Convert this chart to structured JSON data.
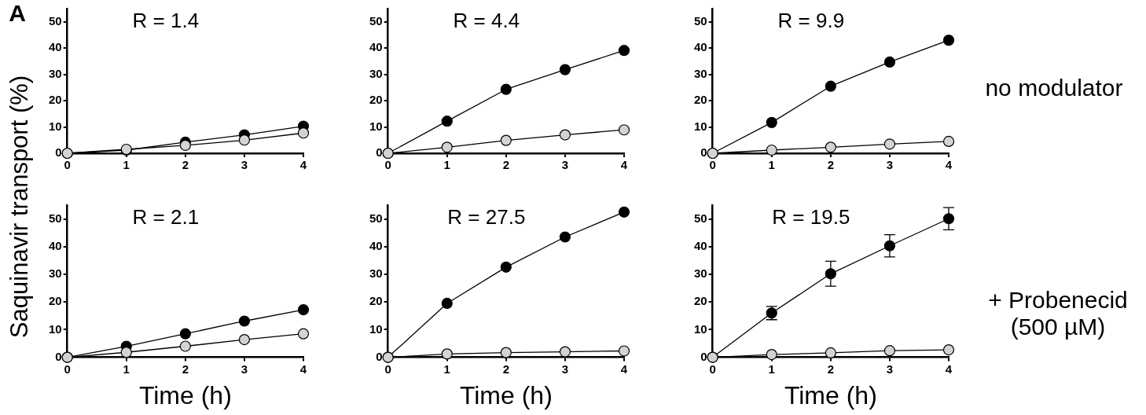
{
  "chart_data": [
    {
      "type": "line",
      "title": "R = 1.4",
      "ylabel": "Saquinavir transport (%)",
      "annotations": [
        "A"
      ],
      "x": [
        0,
        1,
        2,
        3,
        4
      ],
      "xlim": [
        0,
        4
      ],
      "xticks": [
        0,
        1,
        2,
        3,
        4
      ],
      "ylim": [
        0,
        55
      ],
      "yticks": [
        0,
        10,
        20,
        30,
        40,
        50
      ],
      "grid": false,
      "legend": false,
      "marker": "circle",
      "line_style": "solid",
      "series": [
        {
          "color": "#000000",
          "values": [
            0,
            1.2,
            4.2,
            7.0,
            10.3
          ]
        },
        {
          "color": "#d3d3d3",
          "values": [
            0,
            1.5,
            3.0,
            5.0,
            7.7
          ]
        }
      ]
    },
    {
      "type": "line",
      "title": "R = 4.4",
      "x": [
        0,
        1,
        2,
        3,
        4
      ],
      "xlim": [
        0,
        4
      ],
      "xticks": [
        0,
        1,
        2,
        3,
        4
      ],
      "ylim": [
        0,
        55
      ],
      "yticks": [
        0,
        10,
        20,
        30,
        40,
        50
      ],
      "grid": false,
      "legend": false,
      "marker": "circle",
      "line_style": "solid",
      "series": [
        {
          "color": "#000000",
          "values": [
            0,
            12.2,
            24.3,
            31.8,
            39.1
          ]
        },
        {
          "color": "#d3d3d3",
          "values": [
            0,
            2.3,
            4.9,
            7.0,
            8.9
          ]
        }
      ]
    },
    {
      "type": "line",
      "title": "R = 9.9",
      "annotations": [
        "no modulator"
      ],
      "x": [
        0,
        1,
        2,
        3,
        4
      ],
      "xlim": [
        0,
        4
      ],
      "xticks": [
        0,
        1,
        2,
        3,
        4
      ],
      "ylim": [
        0,
        55
      ],
      "yticks": [
        0,
        10,
        20,
        30,
        40,
        50
      ],
      "grid": false,
      "legend": false,
      "marker": "circle",
      "line_style": "solid",
      "series": [
        {
          "color": "#000000",
          "values": [
            0,
            11.7,
            25.5,
            34.7,
            43.0
          ]
        },
        {
          "color": "#d3d3d3",
          "values": [
            0,
            1.2,
            2.3,
            3.5,
            4.5
          ]
        }
      ]
    },
    {
      "type": "line",
      "title": "R = 2.1",
      "xlabel": "Time (h)",
      "x": [
        0,
        1,
        2,
        3,
        4
      ],
      "xlim": [
        0,
        4
      ],
      "xticks": [
        0,
        1,
        2,
        3,
        4
      ],
      "ylim": [
        0,
        55
      ],
      "yticks": [
        0,
        10,
        20,
        30,
        40,
        50
      ],
      "grid": false,
      "legend": false,
      "marker": "circle",
      "line_style": "solid",
      "series": [
        {
          "color": "#000000",
          "values": [
            0,
            4.0,
            8.5,
            13.1,
            17.2
          ]
        },
        {
          "color": "#d3d3d3",
          "values": [
            0,
            1.8,
            4.0,
            6.4,
            8.5
          ]
        }
      ]
    },
    {
      "type": "line",
      "title": "R = 27.5",
      "xlabel": "Time (h)",
      "x": [
        0,
        1,
        2,
        3,
        4
      ],
      "xlim": [
        0,
        4
      ],
      "xticks": [
        0,
        1,
        2,
        3,
        4
      ],
      "ylim": [
        0,
        55
      ],
      "yticks": [
        0,
        10,
        20,
        30,
        40,
        50
      ],
      "grid": false,
      "legend": false,
      "marker": "circle",
      "line_style": "solid",
      "series": [
        {
          "color": "#000000",
          "values": [
            0,
            19.5,
            32.6,
            43.5,
            52.5
          ]
        },
        {
          "color": "#d3d3d3",
          "values": [
            0,
            1.2,
            1.7,
            2.0,
            2.3
          ]
        }
      ]
    },
    {
      "type": "line",
      "title": "R = 19.5",
      "xlabel": "Time (h)",
      "annotations": [
        "+ Probenecid (500 µM)"
      ],
      "x": [
        0,
        1,
        2,
        3,
        4
      ],
      "xlim": [
        0,
        4
      ],
      "xticks": [
        0,
        1,
        2,
        3,
        4
      ],
      "ylim": [
        0,
        55
      ],
      "yticks": [
        0,
        10,
        20,
        30,
        40,
        50
      ],
      "grid": false,
      "legend": false,
      "marker": "circle",
      "line_style": "solid",
      "series": [
        {
          "color": "#000000",
          "values": [
            0,
            16.0,
            30.2,
            40.3,
            50.1
          ],
          "errors": [
            null,
            2.4,
            4.5,
            4.0,
            4.0
          ]
        },
        {
          "color": "#d3d3d3",
          "values": [
            0,
            1.0,
            1.6,
            2.4,
            2.7
          ]
        }
      ]
    }
  ]
}
